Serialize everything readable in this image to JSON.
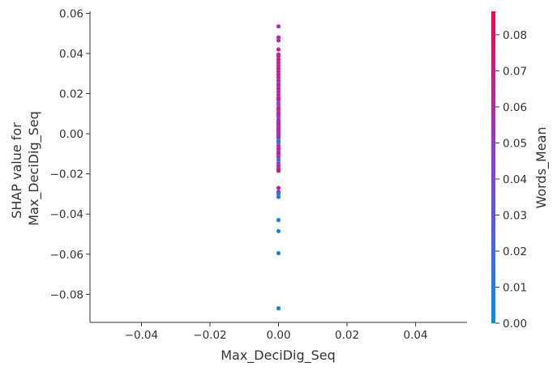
{
  "chart_data": {
    "type": "scatter",
    "xlabel": "Max_DeciDig_Seq",
    "ylabel_lines": [
      "SHAP value for",
      "Max_DeciDig_Seq"
    ],
    "xlim": [
      -0.055,
      0.055
    ],
    "ylim": [
      -0.094,
      0.061
    ],
    "x_ticks": [
      -0.04,
      -0.02,
      0.0,
      0.02,
      0.04
    ],
    "x_tick_labels": [
      "−0.04",
      "−0.02",
      "0.00",
      "0.02",
      "0.04"
    ],
    "y_ticks": [
      0.06,
      0.04,
      0.02,
      0.0,
      -0.02,
      -0.04,
      -0.06,
      -0.08
    ],
    "y_tick_labels": [
      "0.06",
      "0.04",
      "0.02",
      "0.00",
      "−0.02",
      "−0.04",
      "−0.06",
      "−0.08"
    ],
    "grid": false,
    "colorbar": {
      "label": "Words_Mean",
      "min": 0.0,
      "max": 0.0865,
      "ticks": [
        0.0,
        0.01,
        0.02,
        0.03,
        0.04,
        0.05,
        0.06,
        0.07,
        0.08
      ],
      "tick_labels": [
        "0.00",
        "0.01",
        "0.02",
        "0.03",
        "0.04",
        "0.05",
        "0.06",
        "0.07",
        "0.08"
      ],
      "colors": [
        "#008bfb",
        "#8a3fe0",
        "#ff0051"
      ]
    },
    "points": [
      {
        "x": 0,
        "y": 0.0535,
        "c": 0.055
      },
      {
        "x": 0,
        "y": 0.048,
        "c": 0.06
      },
      {
        "x": 0,
        "y": 0.0465,
        "c": 0.058
      },
      {
        "x": 0,
        "y": 0.042,
        "c": 0.07
      },
      {
        "x": 0,
        "y": 0.0395,
        "c": 0.065
      },
      {
        "x": 0,
        "y": 0.0385,
        "c": 0.06
      },
      {
        "x": 0,
        "y": 0.037,
        "c": 0.075
      },
      {
        "x": 0,
        "y": 0.0355,
        "c": 0.068
      },
      {
        "x": 0,
        "y": 0.034,
        "c": 0.062
      },
      {
        "x": 0,
        "y": 0.0325,
        "c": 0.07
      },
      {
        "x": 0,
        "y": 0.031,
        "c": 0.065
      },
      {
        "x": 0,
        "y": 0.0295,
        "c": 0.072
      },
      {
        "x": 0,
        "y": 0.028,
        "c": 0.058
      },
      {
        "x": 0,
        "y": 0.0265,
        "c": 0.066
      },
      {
        "x": 0,
        "y": 0.025,
        "c": 0.05
      },
      {
        "x": 0,
        "y": 0.024,
        "c": 0.06
      },
      {
        "x": 0,
        "y": 0.0225,
        "c": 0.07
      },
      {
        "x": 0,
        "y": 0.021,
        "c": 0.055
      },
      {
        "x": 0,
        "y": 0.0195,
        "c": 0.065
      },
      {
        "x": 0,
        "y": 0.018,
        "c": 0.062
      },
      {
        "x": 0,
        "y": 0.017,
        "c": 0.075
      },
      {
        "x": 0,
        "y": 0.0155,
        "c": 0.045
      },
      {
        "x": 0,
        "y": 0.0145,
        "c": 0.04
      },
      {
        "x": 0,
        "y": 0.013,
        "c": 0.06
      },
      {
        "x": 0,
        "y": 0.012,
        "c": 0.068
      },
      {
        "x": 0,
        "y": 0.0105,
        "c": 0.055
      },
      {
        "x": 0,
        "y": 0.0095,
        "c": 0.07
      },
      {
        "x": 0,
        "y": 0.0085,
        "c": 0.05
      },
      {
        "x": 0,
        "y": 0.007,
        "c": 0.06
      },
      {
        "x": 0,
        "y": 0.006,
        "c": 0.045
      },
      {
        "x": 0,
        "y": 0.005,
        "c": 0.065
      },
      {
        "x": 0,
        "y": 0.004,
        "c": 0.052
      },
      {
        "x": 0,
        "y": 0.003,
        "c": 0.058
      },
      {
        "x": 0,
        "y": 0.002,
        "c": 0.07
      },
      {
        "x": 0,
        "y": 0.001,
        "c": 0.055
      },
      {
        "x": 0,
        "y": 0.0,
        "c": 0.062
      },
      {
        "x": 0,
        "y": -0.001,
        "c": 0.05
      },
      {
        "x": 0,
        "y": -0.002,
        "c": 0.066
      },
      {
        "x": 0,
        "y": -0.0035,
        "c": 0.012
      },
      {
        "x": 0,
        "y": -0.0045,
        "c": 0.015
      },
      {
        "x": 0,
        "y": -0.006,
        "c": 0.06
      },
      {
        "x": 0,
        "y": -0.0075,
        "c": 0.068
      },
      {
        "x": 0,
        "y": -0.009,
        "c": 0.055
      },
      {
        "x": 0,
        "y": -0.01,
        "c": 0.07
      },
      {
        "x": 0,
        "y": -0.0115,
        "c": 0.062
      },
      {
        "x": 0,
        "y": -0.013,
        "c": 0.02
      },
      {
        "x": 0,
        "y": -0.0145,
        "c": 0.035
      },
      {
        "x": 0,
        "y": -0.016,
        "c": 0.06
      },
      {
        "x": 0,
        "y": -0.0175,
        "c": 0.065
      },
      {
        "x": 0,
        "y": -0.0185,
        "c": 0.07
      },
      {
        "x": 0,
        "y": -0.027,
        "c": 0.06
      },
      {
        "x": 0,
        "y": -0.029,
        "c": 0.065
      },
      {
        "x": 0,
        "y": -0.03,
        "c": 0.01
      },
      {
        "x": 0,
        "y": -0.0315,
        "c": 0.012
      },
      {
        "x": 0,
        "y": -0.043,
        "c": 0.005
      },
      {
        "x": 0,
        "y": -0.0485,
        "c": 0.004
      },
      {
        "x": 0,
        "y": -0.0595,
        "c": 0.005
      },
      {
        "x": 0,
        "y": -0.087,
        "c": 0.003
      }
    ]
  }
}
